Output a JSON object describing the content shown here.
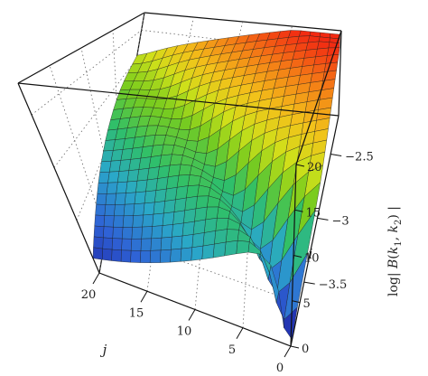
{
  "chart_data": {
    "type": "surface3d",
    "xlabel": "j",
    "ylabel": "i",
    "zlabel": "log| B(k1, k2) |",
    "xlim": [
      0,
      20
    ],
    "ylim": [
      0,
      20
    ],
    "zlim": [
      -4,
      -2.2
    ],
    "x_ticks": [
      {
        "value": 20,
        "label": "20"
      },
      {
        "value": 15,
        "label": "15"
      },
      {
        "value": 10,
        "label": "10"
      },
      {
        "value": 5,
        "label": "5"
      },
      {
        "value": 0,
        "label": "0"
      }
    ],
    "y_ticks": [
      {
        "value": 0,
        "label": "0"
      },
      {
        "value": 5,
        "label": "5"
      },
      {
        "value": 10,
        "label": "10"
      },
      {
        "value": 15,
        "label": "15"
      },
      {
        "value": 20,
        "label": "20"
      }
    ],
    "z_ticks": [
      {
        "value": -2.5,
        "label": "−2.5"
      },
      {
        "value": -3,
        "label": "−3"
      },
      {
        "value": -3.5,
        "label": "−3.5"
      }
    ],
    "grid_points": 20,
    "surface_shape": "log|B| is lowest (about -3.9) in a narrow trough along the diagonal i ≈ j near the front (small i and j), rises to about -3 on the back-left flank and to about -2.3 at the right edge (large i, small j).",
    "colormap": [
      "#1a1a9e",
      "#2f63d6",
      "#2aa8c8",
      "#2fbf6a",
      "#79cc1e",
      "#cfe01a",
      "#f2c21a",
      "#f47e16",
      "#f22a12"
    ],
    "grid": true
  }
}
